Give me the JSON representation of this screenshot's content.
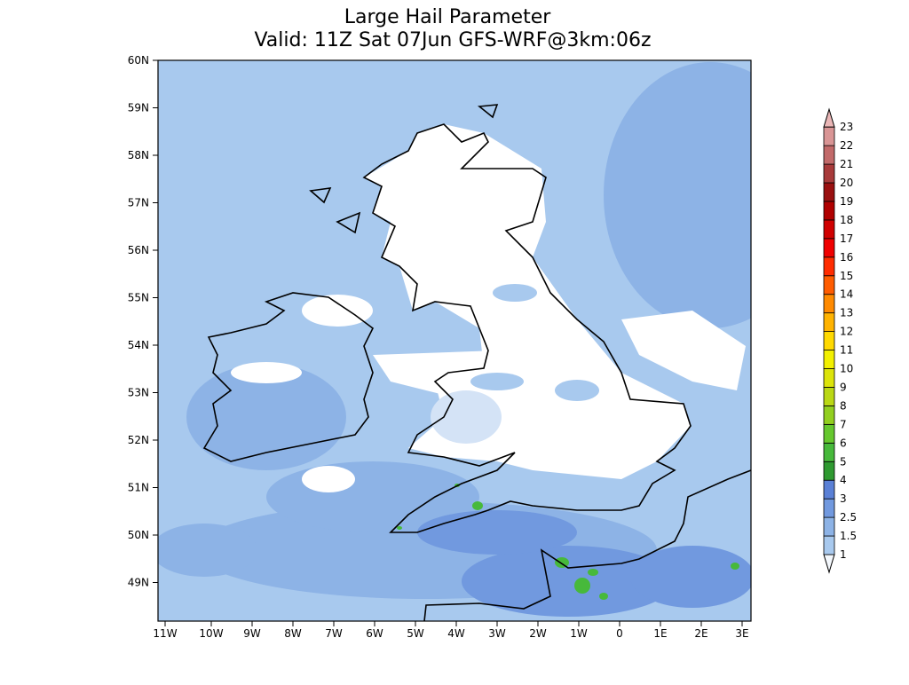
{
  "header": {
    "title": "Large Hail Parameter",
    "subtitle": "Valid: 11Z Sat 07Jun GFS-WRF@3km:06z"
  },
  "map": {
    "lat_labels": [
      "60N",
      "59N",
      "58N",
      "57N",
      "56N",
      "55N",
      "54N",
      "53N",
      "52N",
      "51N",
      "50N",
      "49N"
    ],
    "lon_labels": [
      "11W",
      "10W",
      "9W",
      "8W",
      "7W",
      "6W",
      "5W",
      "4W",
      "3W",
      "2W",
      "1W",
      "0",
      "1E",
      "2E",
      "3E"
    ]
  },
  "colorbar": {
    "labels": [
      "1",
      "1.5",
      "2.5",
      "3",
      "4",
      "5",
      "6",
      "7",
      "8",
      "9",
      "10",
      "11",
      "12",
      "13",
      "14",
      "15",
      "16",
      "17",
      "18",
      "19",
      "20",
      "21",
      "22",
      "23"
    ],
    "colors": [
      "#f4f8fd",
      "#a8c9ee",
      "#8db3e6",
      "#7199df",
      "#5a80d6",
      "#2f9a31",
      "#47b93b",
      "#66c82e",
      "#92cf1f",
      "#bad814",
      "#dce40a",
      "#f2f000",
      "#ffd900",
      "#ffb300",
      "#ff8a00",
      "#ff5c00",
      "#ff2c00",
      "#f00000",
      "#d00000",
      "#b00000",
      "#9a1010",
      "#a83a3a",
      "#c26a6a",
      "#d99595",
      "#eab6b6"
    ]
  }
}
